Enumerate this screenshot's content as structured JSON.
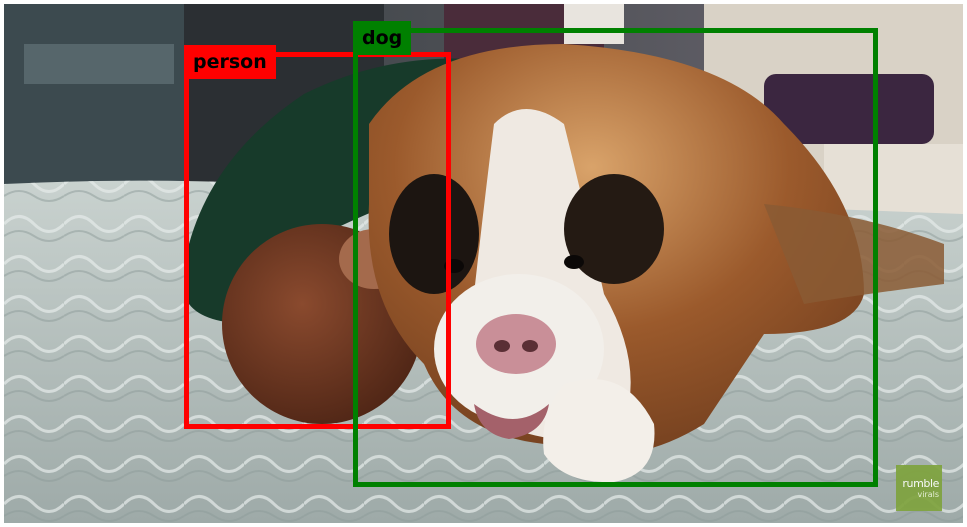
{
  "detections": [
    {
      "label": "person",
      "color": "#ff0000"
    },
    {
      "label": "dog",
      "color": "#008000"
    }
  ],
  "watermark": {
    "line1": "rumble",
    "line2": "virals",
    "color": "#7fa33e"
  }
}
